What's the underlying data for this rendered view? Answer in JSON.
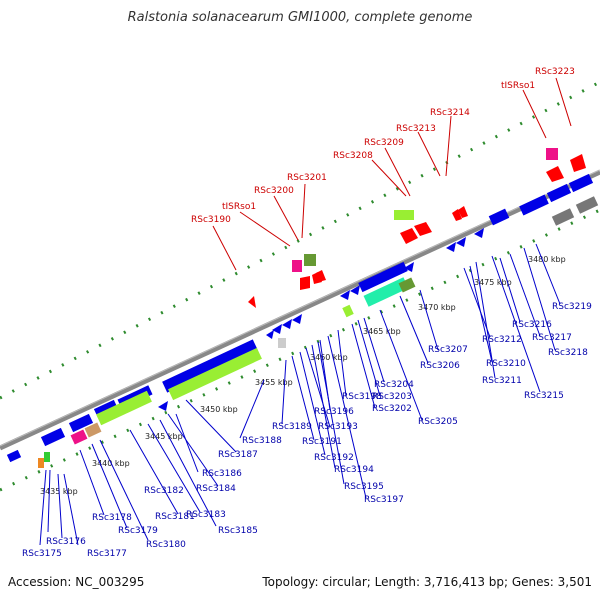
{
  "title": "Ralstonia solanacearum GMI1000, complete genome",
  "accession": "Accession: NC_003295",
  "summary": "Topology: circular; Length: 3,716,413 bp; Genes: 3,501",
  "colors": {
    "forward_feature": "#0000e6",
    "red_feature": "#ff0000",
    "tick_green": "#2e8b2e",
    "backbone": "#888888",
    "label_red": "#cc0000",
    "label_blue": "#0000aa"
  },
  "scale_labels": [
    "3435 kbp",
    "3440 kbp",
    "3445 kbp",
    "3450 kbp",
    "3455 kbp",
    "3460 kbp",
    "3465 kbp",
    "3470 kbp",
    "3475 kbp",
    "3480 kbp"
  ],
  "top_labels": [
    "RSc3190",
    "tISRso1",
    "RSc3200",
    "RSc3201",
    "RSc3208",
    "RSc3209",
    "RSc3213",
    "RSc3214",
    "tISRso1",
    "RSc3223"
  ],
  "bottom_labels": [
    "RSc3175",
    "RSc3176",
    "RSc3177",
    "RSc3178",
    "RSc3179",
    "RSc3180",
    "RSc3181",
    "RSc3182",
    "RSc3183",
    "RSc3184",
    "RSc3185",
    "RSc3186",
    "RSc3187",
    "RSc3188",
    "RSc3189",
    "RSc3191",
    "RSc3192",
    "RSc3193",
    "RSc3194",
    "RSc3195",
    "RSc3196",
    "RSc3197",
    "RSc3198",
    "RSc3202",
    "RSc3203",
    "RSc3204",
    "RSc3205",
    "RSc3206",
    "RSc3207",
    "RSc3210",
    "RSc3211",
    "RSc3212",
    "RSc3215",
    "RSc3216",
    "RSc3217",
    "RSc3218",
    "RSc3219"
  ]
}
